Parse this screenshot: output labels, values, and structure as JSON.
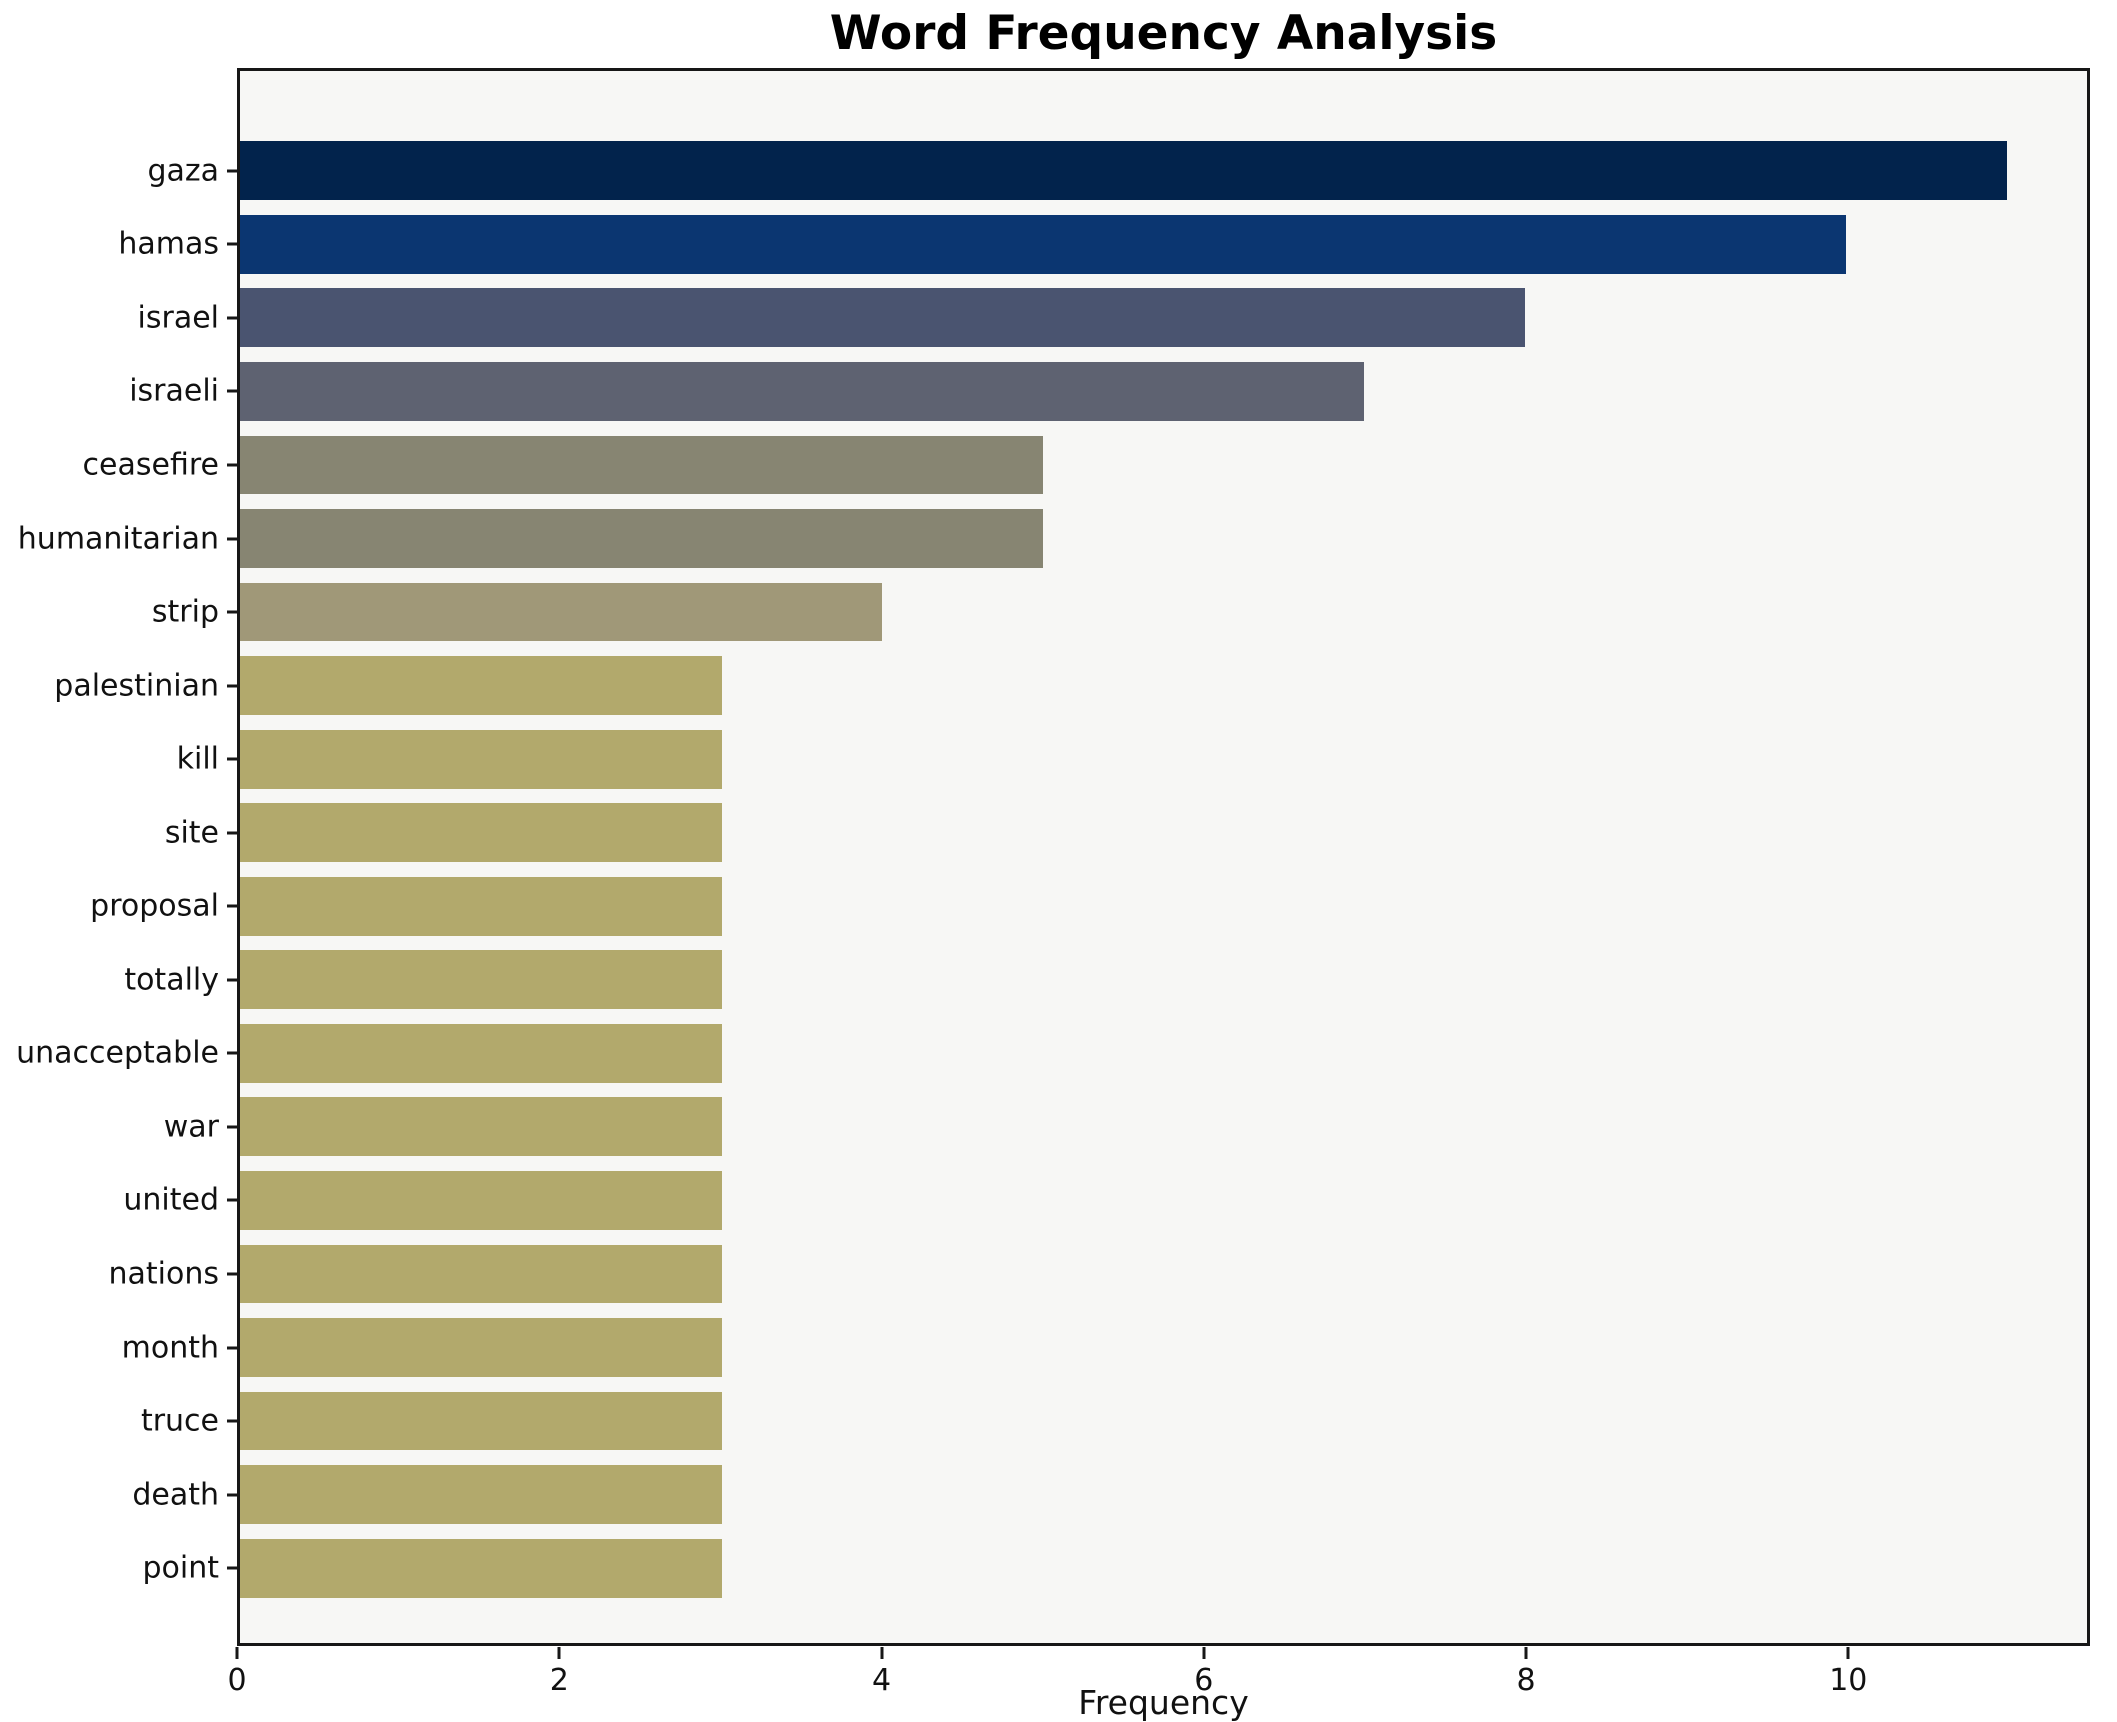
{
  "title": "Word Frequency Analysis",
  "chart_data": {
    "type": "bar",
    "orientation": "horizontal",
    "title": "Word Frequency Analysis",
    "xlabel": "Frequency",
    "ylabel": "",
    "categories": [
      "gaza",
      "hamas",
      "israel",
      "israeli",
      "ceasefire",
      "humanitarian",
      "strip",
      "palestinian",
      "kill",
      "site",
      "proposal",
      "totally",
      "unacceptable",
      "war",
      "united",
      "nations",
      "month",
      "truce",
      "death",
      "point"
    ],
    "values": [
      11,
      10,
      8,
      7,
      5,
      5,
      4,
      3,
      3,
      3,
      3,
      3,
      3,
      3,
      3,
      3,
      3,
      3,
      3,
      3
    ],
    "bar_colors": [
      "#02234c",
      "#0b3671",
      "#4a5470",
      "#5e6271",
      "#878572",
      "#878572",
      "#a09878",
      "#b2a96c",
      "#b2a96c",
      "#b2a96c",
      "#b2a96c",
      "#b2a96c",
      "#b2a96c",
      "#b2a96c",
      "#b2a96c",
      "#b2a96c",
      "#b2a96c",
      "#b2a96c",
      "#b2a96c",
      "#b2a96c"
    ],
    "xlim": [
      0,
      11.5
    ],
    "xticks": [
      0,
      2,
      4,
      6,
      8,
      10
    ],
    "grid": false,
    "legend_position": "none",
    "plot_background": "#f7f7f5",
    "figure_background": "#ffffff",
    "frame_color": "#171717"
  }
}
